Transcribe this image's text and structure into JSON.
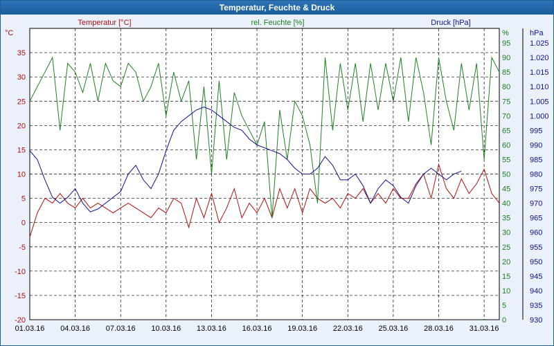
{
  "window": {
    "title": "Temperatur, Feuchte & Druck"
  },
  "chart_data": {
    "type": "line",
    "x_dates": [
      "01.03.16",
      "04.03.16",
      "07.03.16",
      "10.03.16",
      "13.03.16",
      "16.03.16",
      "19.03.16",
      "22.03.16",
      "25.03.16",
      "28.03.16",
      "31.03.16"
    ],
    "x_range": [
      "01.03.16 00:00",
      "01.04.16 00:00"
    ],
    "axes": {
      "left": {
        "unit": "°C",
        "label": "Temperatur [°C]",
        "ylim": [
          -20,
          40
        ],
        "ticks": [
          "35",
          "30",
          "25",
          "20",
          "15",
          "10",
          "5",
          "0",
          "-5",
          "-10",
          "-15",
          "-20"
        ],
        "color": "#b01010"
      },
      "middle": {
        "unit": "%",
        "label": "rel. Feuchte [%]",
        "ylim": [
          0,
          100
        ],
        "ticks": [
          "95",
          "90",
          "85",
          "80",
          "75",
          "70",
          "65",
          "60",
          "55",
          "50",
          "45",
          "40",
          "35",
          "30",
          "25",
          "20",
          "15",
          "10",
          "5",
          "0"
        ],
        "color": "#208020"
      },
      "right": {
        "unit": "hPa",
        "label": "Druck [hPa]",
        "ylim": [
          930,
          1030
        ],
        "ticks": [
          "1.025",
          "1.020",
          "1.015",
          "1.010",
          "1.005",
          "1.000",
          "995",
          "990",
          "985",
          "980",
          "975",
          "970",
          "965",
          "960",
          "955",
          "950",
          "945",
          "940",
          "935",
          "930"
        ],
        "color": "#101090"
      }
    },
    "grid": true,
    "series": [
      {
        "name": "Temperatur [°C]",
        "axis": "left",
        "color": "#b01010",
        "points": [
          [
            0,
            -3
          ],
          [
            0.5,
            2
          ],
          [
            1,
            5
          ],
          [
            1.5,
            4
          ],
          [
            2,
            6
          ],
          [
            2.5,
            4
          ],
          [
            3,
            3
          ],
          [
            3.5,
            5
          ],
          [
            4,
            3
          ],
          [
            4.5,
            4
          ],
          [
            5,
            3
          ],
          [
            5.5,
            2
          ],
          [
            6,
            3
          ],
          [
            6.5,
            4
          ],
          [
            7,
            3
          ],
          [
            7.5,
            2
          ],
          [
            8,
            1
          ],
          [
            8.5,
            3
          ],
          [
            9,
            2
          ],
          [
            9.5,
            5
          ],
          [
            10,
            4
          ],
          [
            10.5,
            -1
          ],
          [
            11,
            5
          ],
          [
            11.5,
            1
          ],
          [
            12,
            6
          ],
          [
            12.5,
            0
          ],
          [
            13,
            3
          ],
          [
            13.5,
            7
          ],
          [
            14,
            1
          ],
          [
            14.5,
            4
          ],
          [
            15,
            2
          ],
          [
            15.5,
            5
          ],
          [
            16,
            1
          ],
          [
            16.5,
            7
          ],
          [
            17,
            3
          ],
          [
            17.5,
            7
          ],
          [
            18,
            2
          ],
          [
            18.5,
            7
          ],
          [
            19,
            5
          ],
          [
            19.5,
            4
          ],
          [
            20,
            5
          ],
          [
            20.5,
            3
          ],
          [
            21,
            6
          ],
          [
            21.5,
            5
          ],
          [
            22,
            7
          ],
          [
            22.5,
            4
          ],
          [
            23,
            6
          ],
          [
            23.5,
            4
          ],
          [
            24,
            7
          ],
          [
            24.5,
            5
          ],
          [
            25,
            5
          ],
          [
            25.5,
            8
          ],
          [
            26,
            10
          ],
          [
            26.5,
            5
          ],
          [
            27,
            12
          ],
          [
            27.5,
            7
          ],
          [
            28,
            5
          ],
          [
            28.5,
            9
          ],
          [
            29,
            6
          ],
          [
            29.5,
            8
          ],
          [
            30,
            11
          ],
          [
            30.5,
            6
          ],
          [
            31,
            4
          ]
        ]
      },
      {
        "name": "rel. Feuchte [%]",
        "axis": "middle",
        "color": "#208020",
        "points": [
          [
            0,
            75
          ],
          [
            0.5,
            80
          ],
          [
            1,
            85
          ],
          [
            1.5,
            90
          ],
          [
            2,
            65
          ],
          [
            2.5,
            88
          ],
          [
            3,
            85
          ],
          [
            3.5,
            78
          ],
          [
            4,
            88
          ],
          [
            4.5,
            75
          ],
          [
            5,
            88
          ],
          [
            5.5,
            82
          ],
          [
            6,
            80
          ],
          [
            6.5,
            88
          ],
          [
            7,
            85
          ],
          [
            7.5,
            75
          ],
          [
            8,
            80
          ],
          [
            8.5,
            88
          ],
          [
            9,
            70
          ],
          [
            9.5,
            85
          ],
          [
            10,
            75
          ],
          [
            10.5,
            82
          ],
          [
            11,
            55
          ],
          [
            11.5,
            80
          ],
          [
            12,
            50
          ],
          [
            12.5,
            82
          ],
          [
            13,
            55
          ],
          [
            13.5,
            78
          ],
          [
            14,
            70
          ],
          [
            14.5,
            65
          ],
          [
            15,
            60
          ],
          [
            15.5,
            68
          ],
          [
            16,
            35
          ],
          [
            16.5,
            72
          ],
          [
            17,
            55
          ],
          [
            17.5,
            75
          ],
          [
            18,
            70
          ],
          [
            18.5,
            60
          ],
          [
            19,
            40
          ],
          [
            19.5,
            90
          ],
          [
            20,
            65
          ],
          [
            20.5,
            88
          ],
          [
            21,
            72
          ],
          [
            21.5,
            88
          ],
          [
            22,
            68
          ],
          [
            22.5,
            88
          ],
          [
            23,
            72
          ],
          [
            23.5,
            88
          ],
          [
            24,
            75
          ],
          [
            24.5,
            90
          ],
          [
            25,
            68
          ],
          [
            25.5,
            90
          ],
          [
            26,
            78
          ],
          [
            26.5,
            60
          ],
          [
            27,
            90
          ],
          [
            27.5,
            75
          ],
          [
            28,
            65
          ],
          [
            28.5,
            88
          ],
          [
            29,
            72
          ],
          [
            29.5,
            88
          ],
          [
            30,
            55
          ],
          [
            30.5,
            90
          ],
          [
            31,
            85
          ]
        ]
      },
      {
        "name": "Druck [hPa]",
        "axis": "right",
        "color": "#101090",
        "points": [
          [
            0,
            988
          ],
          [
            0.5,
            985
          ],
          [
            1,
            978
          ],
          [
            1.5,
            972
          ],
          [
            2,
            970
          ],
          [
            2.5,
            972
          ],
          [
            3,
            975
          ],
          [
            3.5,
            970
          ],
          [
            4,
            967
          ],
          [
            4.5,
            968
          ],
          [
            5,
            970
          ],
          [
            5.5,
            972
          ],
          [
            6,
            974
          ],
          [
            6.5,
            980
          ],
          [
            7,
            983
          ],
          [
            7.5,
            978
          ],
          [
            8,
            975
          ],
          [
            8.5,
            980
          ],
          [
            9,
            988
          ],
          [
            9.5,
            995
          ],
          [
            10,
            998
          ],
          [
            10.5,
            1000
          ],
          [
            11,
            1002
          ],
          [
            11.5,
            1003
          ],
          [
            12,
            1002
          ],
          [
            12.5,
            1000
          ],
          [
            13,
            998
          ],
          [
            13.5,
            996
          ],
          [
            14,
            995
          ],
          [
            14.5,
            992
          ],
          [
            15,
            990
          ],
          [
            15.5,
            989
          ],
          [
            16,
            988
          ],
          [
            16.5,
            987
          ],
          [
            17,
            985
          ],
          [
            17.5,
            982
          ],
          [
            18,
            980
          ],
          [
            18.5,
            980
          ],
          [
            19,
            982
          ],
          [
            19.5,
            986
          ],
          [
            20,
            983
          ],
          [
            20.5,
            978
          ],
          [
            21,
            978
          ],
          [
            21.5,
            980
          ],
          [
            22,
            976
          ],
          [
            22.5,
            970
          ],
          [
            23,
            975
          ],
          [
            23.5,
            978
          ],
          [
            24,
            976
          ],
          [
            24.5,
            972
          ],
          [
            25,
            970
          ],
          [
            25.5,
            976
          ],
          [
            26,
            980
          ],
          [
            26.5,
            982
          ],
          [
            27,
            980
          ],
          [
            27.5,
            978
          ],
          [
            28,
            980
          ],
          [
            28.5,
            981
          ]
        ]
      }
    ]
  }
}
